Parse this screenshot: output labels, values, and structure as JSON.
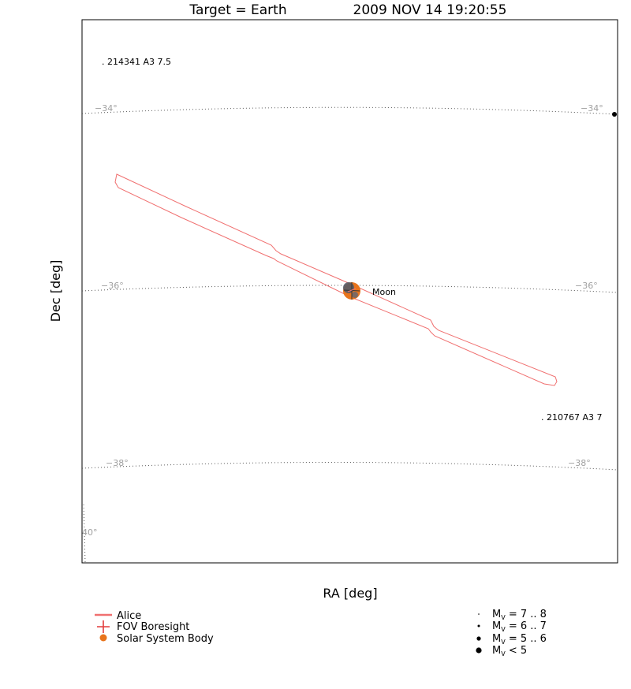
{
  "title": {
    "target": "Target = Earth",
    "time": "2009 NOV 14 19:20:55"
  },
  "axes": {
    "xlabel": "RA [deg]",
    "ylabel": "Dec [deg]"
  },
  "dec_lines": [
    {
      "label": "−34°",
      "label_left": "−34°",
      "label_right": "−34°"
    },
    {
      "label": "−36°",
      "label_left": "−36°",
      "label_right": "−36°"
    },
    {
      "label": "−38°",
      "label_left": "−38°",
      "label_right": "−38°"
    }
  ],
  "partial_label": "40°",
  "stars": [
    {
      "label": ". 214341 A3 7.5"
    },
    {
      "label": ". 210767 A3 7"
    }
  ],
  "body": {
    "label": "Moon",
    "color": "#e8741c"
  },
  "fov": {
    "color": "#f07070"
  },
  "legend": {
    "left": [
      {
        "label": "Alice",
        "icon": "line-swatch-icon"
      },
      {
        "label": "FOV Boresight",
        "icon": "plus-icon"
      },
      {
        "label": "Solar System Body",
        "icon": "orange-dot-icon"
      }
    ],
    "right": [
      {
        "sub": "V",
        "rest": " = 7 .. 8"
      },
      {
        "sub": "V",
        "rest": " = 6 .. 7"
      },
      {
        "sub": "V",
        "rest": " = 5 .. 6"
      },
      {
        "sub": "V",
        "rest": " < 5"
      }
    ]
  }
}
